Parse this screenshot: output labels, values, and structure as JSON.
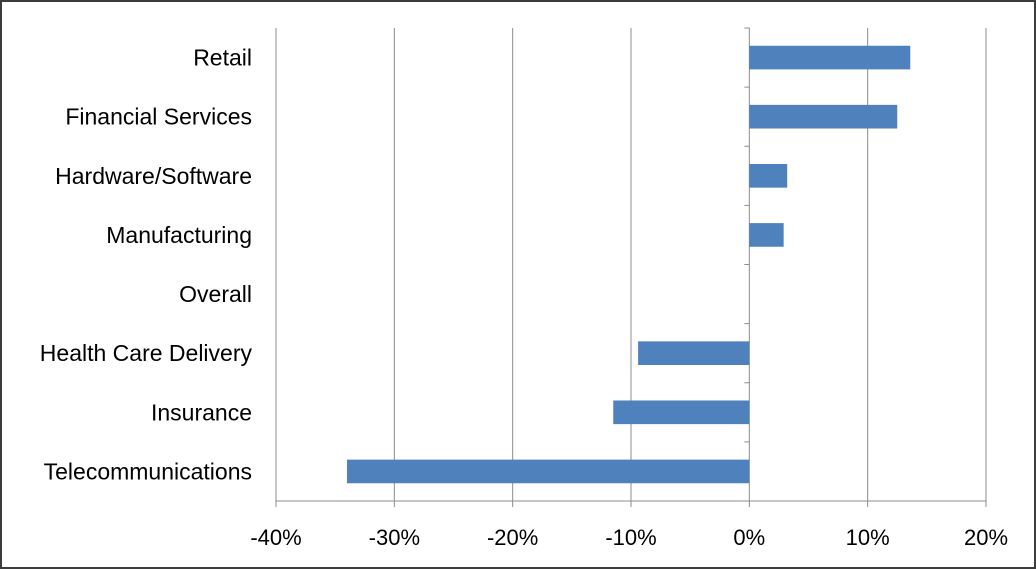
{
  "chart_data": {
    "type": "bar",
    "orientation": "horizontal",
    "categories": [
      "Retail",
      "Financial Services",
      "Hardware/Software",
      "Manufacturing",
      "Overall",
      "Health Care Delivery",
      "Insurance",
      "Telecommunications"
    ],
    "values": [
      13.6,
      12.5,
      3.2,
      2.9,
      0.0,
      -9.4,
      -11.5,
      -34.0
    ],
    "x_ticks": [
      "-40%",
      "-30%",
      "-20%",
      "-10%",
      "0%",
      "10%",
      "20%"
    ],
    "xlim": [
      -40,
      20
    ],
    "unit": "%",
    "grid": "vertical",
    "legend": "none",
    "title": "",
    "xlabel": "",
    "ylabel": "",
    "colors": {
      "bar": "#4f81bd",
      "grid": "#8c8c8c",
      "border": "#3c3c3c"
    }
  }
}
